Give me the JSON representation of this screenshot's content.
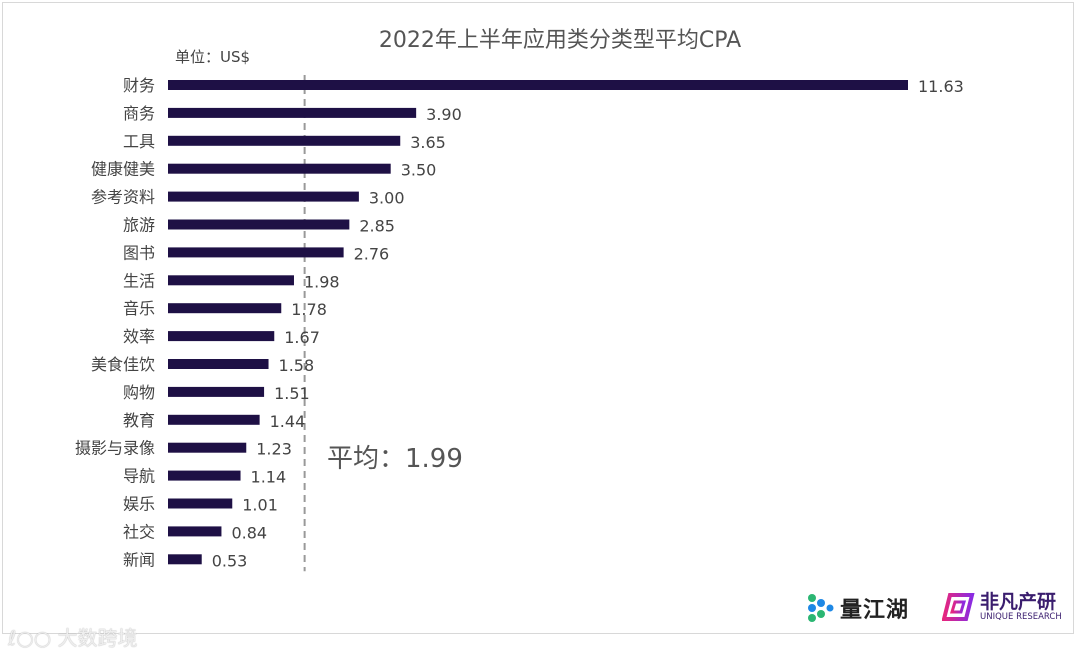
{
  "chart_data": {
    "type": "bar",
    "orientation": "horizontal",
    "title": "2022年上半年应用类分类型平均CPA",
    "unit_label": "单位：US$",
    "categories": [
      "财务",
      "商务",
      "工具",
      "健康健美",
      "参考资料",
      "旅游",
      "图书",
      "生活",
      "音乐",
      "效率",
      "美食佳饮",
      "购物",
      "教育",
      "摄影与录像",
      "导航",
      "娱乐",
      "社交",
      "新闻"
    ],
    "values": [
      11.63,
      3.9,
      3.65,
      3.5,
      3.0,
      2.85,
      2.76,
      1.98,
      1.78,
      1.67,
      1.58,
      1.51,
      1.44,
      1.23,
      1.14,
      1.01,
      0.84,
      0.53
    ],
    "value_labels": [
      "11.63",
      "3.90",
      "3.65",
      "3.50",
      "3.00",
      "2.85",
      "2.76",
      "1.98",
      "1.78",
      "1.67",
      "1.58",
      "1.51",
      "1.44",
      "1.23",
      "1.14",
      "1.01",
      "0.84",
      "0.53"
    ],
    "average": {
      "value": 1.99,
      "label": "平均：1.99",
      "line_style": "dashed",
      "color": "#999999"
    },
    "bar_color": "#1e1045",
    "xlim": [
      0,
      11.63
    ],
    "grid": false,
    "legend": "none"
  },
  "logos": {
    "left": "量江湖",
    "right": "非凡产研",
    "right_sub": "UNIQUE RESEARCH",
    "watermark": "大数跨境"
  }
}
